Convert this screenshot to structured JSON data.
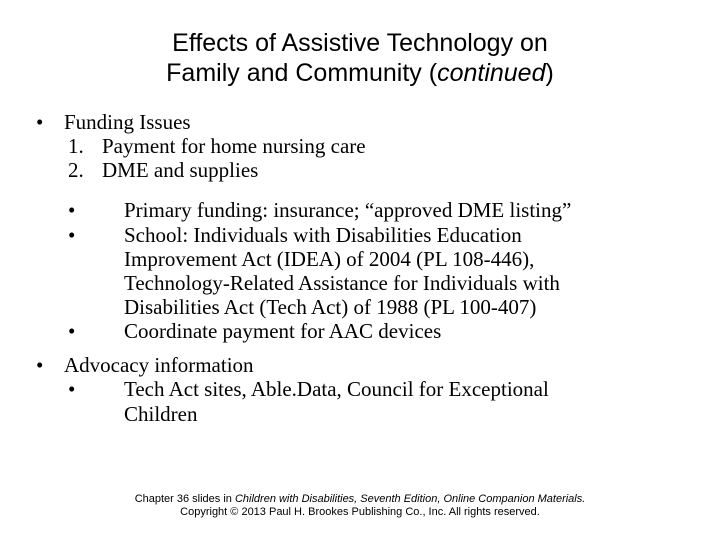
{
  "title": {
    "line1": "Effects of Assistive Technology on",
    "line2_prefix": "Family and Community (",
    "line2_italic": "continued",
    "line2_suffix": ")"
  },
  "b1": {
    "marker": "•",
    "text": "Funding Issues",
    "n1": {
      "marker": "1.",
      "text": "Payment for home nursing care"
    },
    "n2": {
      "marker": "2.",
      "text": "DME and supplies"
    },
    "s1": {
      "marker": "•",
      "text": "Primary funding: insurance; “approved DME listing”"
    },
    "s2": {
      "marker": "•",
      "l1": "School: Individuals with Disabilities Education",
      "l2": "Improvement Act (IDEA) of 2004 (PL 108-446),",
      "l3": "Technology-Related Assistance for Individuals with",
      "l4": "Disabilities Act (Tech Act) of 1988 (PL 100-407)"
    },
    "s3": {
      "marker": "•",
      "text": "Coordinate payment for AAC devices"
    }
  },
  "b2": {
    "marker": "•",
    "text": "Advocacy information",
    "s1": {
      "marker": "•",
      "l1": "Tech Act sites, Able.Data, Council for Exceptional",
      "l2": "Children"
    }
  },
  "footer": {
    "l1a": "Chapter 36 slides in ",
    "l1b": "Children with Disabilities, Seventh Edition, Online Companion Materials.",
    "l2": "Copyright © 2013 Paul H. Brookes Publishing Co., Inc. All rights reserved."
  }
}
